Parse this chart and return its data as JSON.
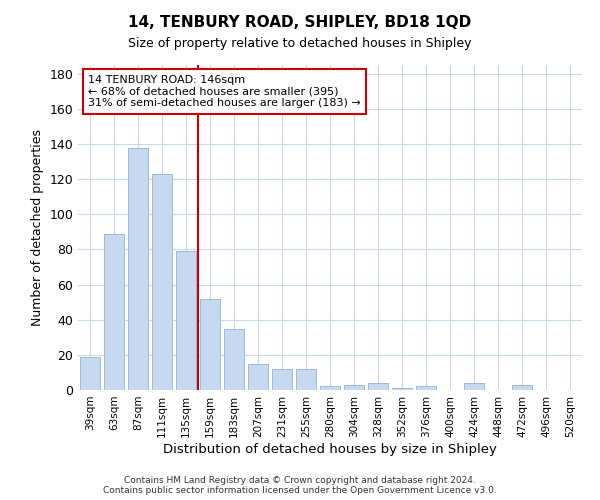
{
  "title": "14, TENBURY ROAD, SHIPLEY, BD18 1QD",
  "subtitle": "Size of property relative to detached houses in Shipley",
  "xlabel": "Distribution of detached houses by size in Shipley",
  "ylabel": "Number of detached properties",
  "categories": [
    "39sqm",
    "63sqm",
    "87sqm",
    "111sqm",
    "135sqm",
    "159sqm",
    "183sqm",
    "207sqm",
    "231sqm",
    "255sqm",
    "280sqm",
    "304sqm",
    "328sqm",
    "352sqm",
    "376sqm",
    "400sqm",
    "424sqm",
    "448sqm",
    "472sqm",
    "496sqm",
    "520sqm"
  ],
  "values": [
    19,
    89,
    138,
    123,
    79,
    52,
    35,
    15,
    12,
    12,
    2,
    3,
    4,
    1,
    2,
    0,
    4,
    0,
    3,
    0,
    0
  ],
  "bar_color": "#c6d9f0",
  "bar_edge_color": "#9ab8d8",
  "vline_x": 4.5,
  "vline_color": "#cc0000",
  "annotation_text": "14 TENBURY ROAD: 146sqm\n← 68% of detached houses are smaller (395)\n31% of semi-detached houses are larger (183) →",
  "annotation_box_color": "#ffffff",
  "annotation_box_edge": "#cc0000",
  "ylim": [
    0,
    185
  ],
  "yticks": [
    0,
    20,
    40,
    60,
    80,
    100,
    120,
    140,
    160,
    180
  ],
  "background_color": "#ffffff",
  "grid_color": "#c8d8ee",
  "footer_line1": "Contains HM Land Registry data © Crown copyright and database right 2024.",
  "footer_line2": "Contains public sector information licensed under the Open Government Licence v3.0."
}
